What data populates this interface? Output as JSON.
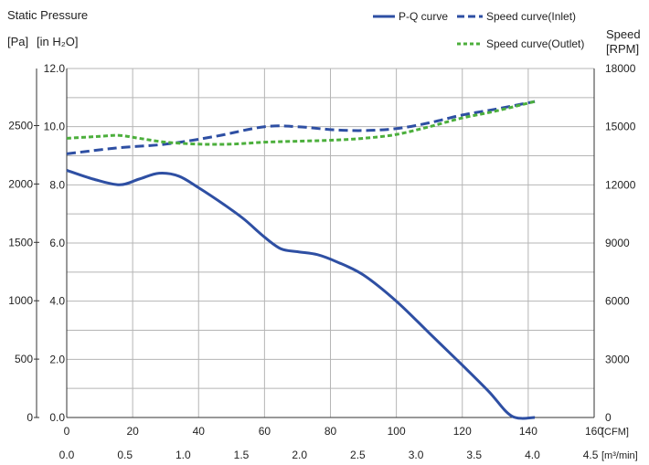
{
  "chart_data": {
    "type": "line",
    "title": "",
    "left_axis": {
      "title_line1": "Static Pressure",
      "title_pa": "[Pa]",
      "title_inh2o": "[in H₂O]",
      "pa_ticks": [
        "0",
        "500",
        "1000",
        "1500",
        "2000",
        "2500"
      ],
      "inh2o_ticks": [
        "0.0",
        "2.0",
        "4.0",
        "6.0",
        "8.0",
        "10.0",
        "12.0"
      ],
      "ylim_inh2o": [
        0,
        12
      ]
    },
    "right_axis": {
      "title_line1": "Speed",
      "title_line2": "[RPM]",
      "ticks": [
        "0",
        "3000",
        "6000",
        "9000",
        "12000",
        "15000",
        "18000"
      ],
      "ylim": [
        0,
        18000
      ]
    },
    "x_axis_cfm": {
      "unit_label": "[CFM]",
      "ticks": [
        "0",
        "20",
        "40",
        "60",
        "80",
        "100",
        "120",
        "140",
        "160"
      ],
      "xlim": [
        0,
        160
      ]
    },
    "x_axis_m3min": {
      "unit_label": "[m³/min]",
      "ticks": [
        "0.0",
        "0.5",
        "1.0",
        "1.5",
        "2.0",
        "2.5",
        "3.0",
        "3.5",
        "4.0",
        "4.5"
      ]
    },
    "legend": {
      "placement": "top-right",
      "entries": [
        "P-Q curve",
        "Speed curve(Inlet)",
        "Speed curve(Outlet)"
      ]
    },
    "series": [
      {
        "name": "P-Q curve",
        "axis": "left",
        "color": "#2e4fa3",
        "style": "solid",
        "x": [
          0,
          8,
          16,
          22,
          28,
          34,
          40,
          48,
          54,
          60,
          65,
          70,
          76,
          82,
          90,
          100,
          110,
          120,
          128,
          135,
          142
        ],
        "y": [
          8.5,
          8.2,
          8.0,
          8.2,
          8.4,
          8.3,
          7.9,
          7.3,
          6.8,
          6.2,
          5.8,
          5.7,
          5.6,
          5.35,
          4.9,
          4.0,
          2.9,
          1.8,
          0.9,
          0.05,
          0.0
        ]
      },
      {
        "name": "Speed curve(Inlet)",
        "axis": "right",
        "color": "#2e4fa3",
        "style": "dashed",
        "x": [
          0,
          15,
          30,
          45,
          60,
          70,
          80,
          90,
          100,
          110,
          120,
          130,
          142
        ],
        "y": [
          13600,
          13900,
          14100,
          14500,
          15000,
          15000,
          14850,
          14800,
          14900,
          15200,
          15600,
          15900,
          16300
        ]
      },
      {
        "name": "Speed curve(Outlet)",
        "axis": "right",
        "color": "#4caf3c",
        "style": "dashed",
        "x": [
          0,
          10,
          16,
          22,
          30,
          40,
          50,
          60,
          70,
          80,
          90,
          100,
          110,
          120,
          130,
          142
        ],
        "y": [
          14400,
          14500,
          14550,
          14400,
          14200,
          14100,
          14100,
          14200,
          14250,
          14300,
          14400,
          14600,
          15000,
          15450,
          15800,
          16300
        ]
      }
    ]
  }
}
